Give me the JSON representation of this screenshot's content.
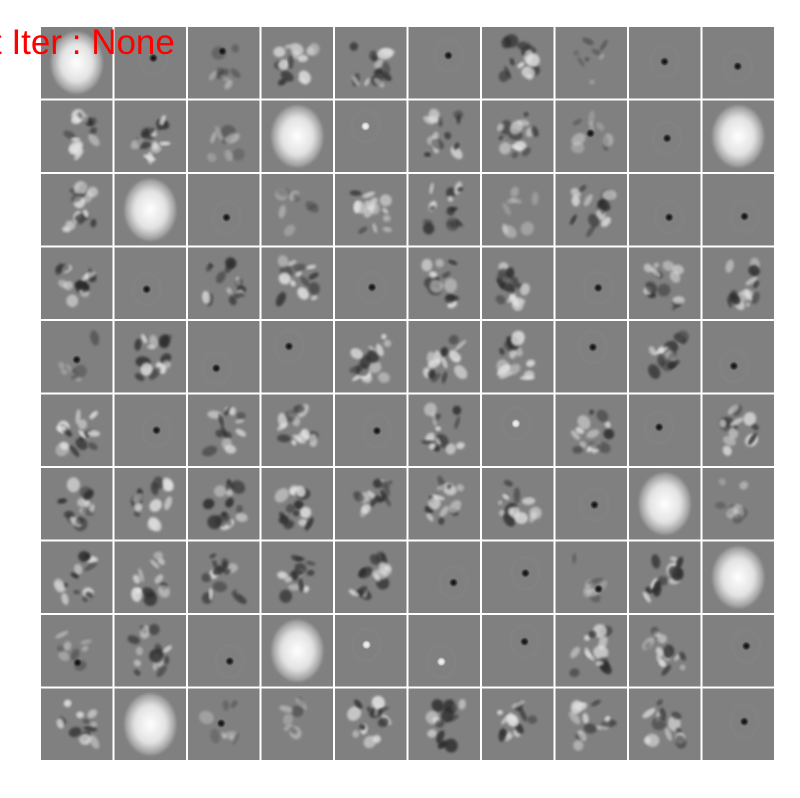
{
  "title": "t Iter : None",
  "grid": {
    "rows": 10,
    "cols": 10,
    "background_color": "#808080",
    "separator_color": "#ffffff",
    "title_color": "#ff0000"
  },
  "tiles": [
    [
      "blob-light",
      "dot-dark",
      "diffuse-dark",
      "digit-mix",
      "digit-mix",
      "dot-dark",
      "digit-mix",
      "diffuse",
      "dot-dark",
      "dot-dark"
    ],
    [
      "digit-mix",
      "digit-mix",
      "diffuse",
      "blob-light",
      "dot-light",
      "digit-mix",
      "digit-mix",
      "diffuse-dark",
      "dot-dark",
      "blob-light"
    ],
    [
      "digit-mix",
      "blob-light",
      "dot-dark",
      "diffuse",
      "digit-mix",
      "digit-mix",
      "diffuse",
      "digit-mix",
      "dot-dark",
      "dot-dark"
    ],
    [
      "digit-mix",
      "dot-dark",
      "digit-mix",
      "digit-mix",
      "dot-dark",
      "digit-mix",
      "digit-mix",
      "dot-dark",
      "digit-mix",
      "digit-mix"
    ],
    [
      "diffuse-dark",
      "digit-mix",
      "dot-dark",
      "dot-dark",
      "digit-mix",
      "digit-mix",
      "digit-mix",
      "dot-dark",
      "digit-mix",
      "dot-dark"
    ],
    [
      "digit-mix",
      "dot-dark",
      "digit-mix",
      "digit-mix",
      "dot-dark",
      "digit-mix",
      "dot-light",
      "digit-mix",
      "dot-dark",
      "digit-mix"
    ],
    [
      "digit-mix",
      "digit-mix",
      "digit-mix",
      "digit-mix",
      "digit-mix",
      "digit-mix",
      "digit-mix",
      "dot-dark",
      "blob-light",
      "diffuse"
    ],
    [
      "digit-mix",
      "digit-mix",
      "digit-mix",
      "digit-mix",
      "digit-mix",
      "dot-dark",
      "dot-dark",
      "diffuse-dark",
      "digit-mix",
      "blob-light"
    ],
    [
      "diffuse-dark",
      "digit-mix",
      "dot-dark",
      "blob-light",
      "dot-light",
      "dot-light",
      "dot-dark",
      "digit-mix",
      "digit-mix",
      "dot-dark"
    ],
    [
      "digit-mix",
      "blob-light",
      "diffuse-dark",
      "diffuse",
      "digit-mix",
      "digit-mix",
      "digit-mix",
      "digit-mix",
      "digit-mix",
      "dot-dark"
    ]
  ]
}
